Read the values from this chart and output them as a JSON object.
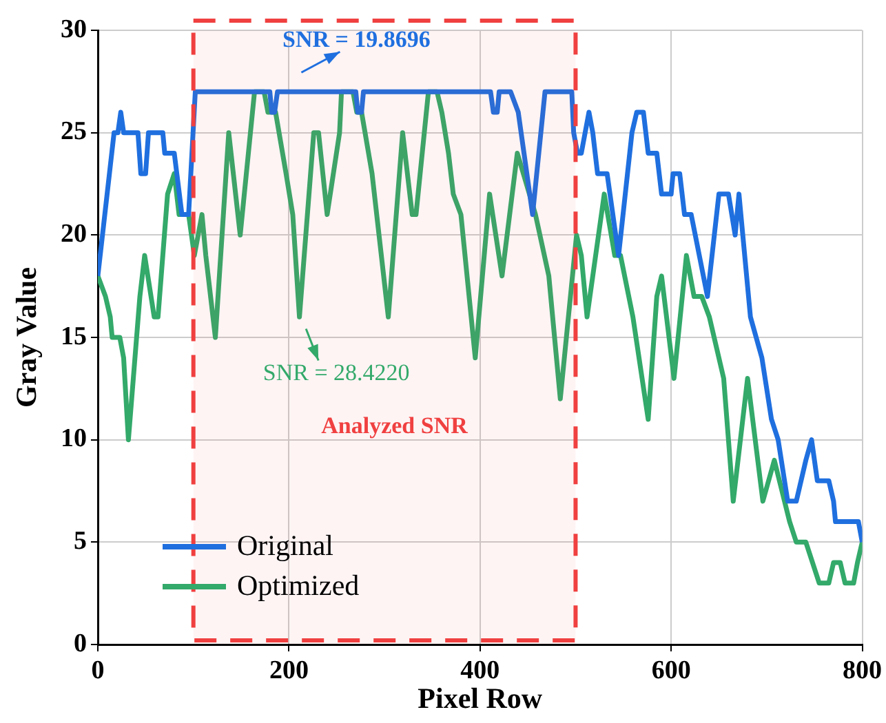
{
  "chart_data": {
    "type": "line",
    "xlabel": "Pixel Row",
    "ylabel": "Gray Value",
    "xlim": [
      0,
      800
    ],
    "xticks": [
      0,
      200,
      400,
      600,
      800
    ],
    "ylim": [
      0,
      30
    ],
    "yticks": [
      0,
      5,
      10,
      15,
      20,
      25,
      30
    ],
    "grid": true,
    "legend": "bottom left",
    "marker": "none",
    "line_style": "solid",
    "series": [
      {
        "name": "Original",
        "color": "#1f6fdf",
        "x": [
          0,
          17,
          21,
          24,
          27,
          42,
          45,
          50,
          53,
          68,
          70,
          80,
          88,
          95,
          102,
          180,
          182,
          185,
          188,
          270,
          272,
          276,
          278,
          411,
          414,
          418,
          420,
          432,
          440,
          443,
          455,
          468,
          496,
          498,
          502,
          506,
          510,
          514,
          518,
          523,
          533,
          545,
          559,
          564,
          571,
          576,
          585,
          590,
          600,
          602,
          609,
          614,
          621,
          638,
          650,
          660,
          667,
          671,
          683,
          695,
          705,
          712,
          722,
          731,
          741,
          747,
          753,
          765,
          770,
          772,
          796,
          800
        ],
        "values": [
          18,
          25,
          25,
          26,
          25,
          25,
          23,
          23,
          25,
          25,
          24,
          24,
          21,
          21,
          27,
          27,
          26,
          26,
          27,
          27,
          26,
          26,
          27,
          27,
          26,
          26,
          27,
          27,
          26,
          25,
          21,
          27,
          27,
          25,
          24,
          24,
          25,
          26,
          25,
          23,
          23,
          19,
          25,
          26,
          26,
          24,
          24,
          22,
          22,
          23,
          23,
          21,
          21,
          17,
          22,
          22,
          20,
          22,
          16,
          14,
          11,
          10,
          7,
          7,
          9,
          10,
          8,
          8,
          7,
          6,
          6,
          5
        ]
      },
      {
        "name": "Optimized",
        "color": "#33a96a",
        "x": [
          0,
          8,
          13,
          15,
          23,
          27,
          32,
          44,
          49,
          59,
          63,
          73,
          80,
          85,
          95,
          101,
          109,
          113,
          123,
          137,
          149,
          164,
          174,
          178,
          186,
          197,
          204,
          211,
          226,
          231,
          240,
          253,
          255,
          267,
          271,
          276,
          287,
          304,
          319,
          329,
          333,
          346,
          355,
          360,
          367,
          372,
          380,
          395,
          410,
          423,
          439,
          458,
          472,
          484,
          501,
          506,
          512,
          530,
          541,
          547,
          560,
          576,
          585,
          590,
          603,
          616,
          624,
          632,
          640,
          655,
          665,
          680,
          696,
          708,
          724,
          731,
          741,
          748,
          755,
          765,
          770,
          777,
          782,
          791,
          795,
          800
        ],
        "values": [
          18,
          17,
          16,
          15,
          15,
          14,
          10,
          17,
          19,
          16,
          16,
          22,
          23,
          21,
          21,
          19,
          21,
          19,
          15,
          25,
          20,
          27,
          27,
          26,
          26,
          23,
          21,
          16,
          25,
          25,
          21,
          25,
          27,
          27,
          26,
          26,
          23,
          16,
          25,
          21,
          21,
          27,
          27,
          26,
          24,
          22,
          21,
          14,
          22,
          18,
          24,
          21,
          18,
          12,
          20,
          19,
          16,
          22,
          19,
          19,
          16,
          11,
          17,
          18,
          13,
          19,
          17,
          17,
          16,
          13,
          7,
          13,
          7,
          9,
          6,
          5,
          5,
          4,
          3,
          3,
          4,
          4,
          3,
          3,
          4,
          5
        ]
      }
    ],
    "bands": [
      {
        "axis": "x",
        "from": 100,
        "to": 500,
        "color": "#f04040"
      }
    ],
    "annotations": [
      {
        "text": "SNR = 19.8696",
        "x": 213,
        "y": 27
      },
      "SNR = 28.4220",
      "Analyzed SNR"
    ]
  }
}
